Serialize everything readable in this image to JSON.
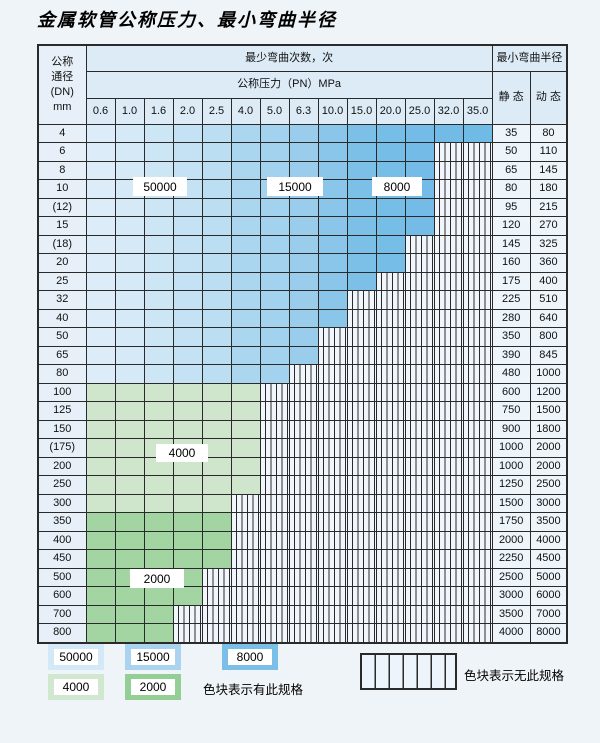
{
  "page": {
    "title": "金属软管公称压力、最小弯曲半径"
  },
  "table": {
    "header": {
      "dn_lines": [
        "公称",
        "通径",
        "(DN)",
        "mm"
      ],
      "bend_cycles_title": "最少弯曲次数，次",
      "pn_title": "公称压力（PN）MPa",
      "pn_values": [
        "0.6",
        "1.0",
        "1.6",
        "2.0",
        "2.5",
        "4.0",
        "5.0",
        "6.3",
        "10.0",
        "15.0",
        "20.0",
        "25.0",
        "32.0",
        "35.0"
      ],
      "radius_title": "最小弯曲半径",
      "static_label": "静 态",
      "dynamic_label": "动 态"
    },
    "rows": [
      {
        "dn": "4",
        "static": "35",
        "dynamic": "80",
        "pn_max_idx": 13,
        "zone": "blue"
      },
      {
        "dn": "6",
        "static": "50",
        "dynamic": "110",
        "pn_max_idx": 11,
        "zone": "blue"
      },
      {
        "dn": "8",
        "static": "65",
        "dynamic": "145",
        "pn_max_idx": 11,
        "zone": "blue"
      },
      {
        "dn": "10",
        "static": "80",
        "dynamic": "180",
        "pn_max_idx": 11,
        "zone": "blue"
      },
      {
        "dn": "(12)",
        "static": "95",
        "dynamic": "215",
        "pn_max_idx": 11,
        "zone": "blue"
      },
      {
        "dn": "15",
        "static": "120",
        "dynamic": "270",
        "pn_max_idx": 11,
        "zone": "blue"
      },
      {
        "dn": "(18)",
        "static": "145",
        "dynamic": "325",
        "pn_max_idx": 10,
        "zone": "blue"
      },
      {
        "dn": "20",
        "static": "160",
        "dynamic": "360",
        "pn_max_idx": 10,
        "zone": "blue"
      },
      {
        "dn": "25",
        "static": "175",
        "dynamic": "400",
        "pn_max_idx": 9,
        "zone": "blue"
      },
      {
        "dn": "32",
        "static": "225",
        "dynamic": "510",
        "pn_max_idx": 8,
        "zone": "blue"
      },
      {
        "dn": "40",
        "static": "280",
        "dynamic": "640",
        "pn_max_idx": 8,
        "zone": "blue"
      },
      {
        "dn": "50",
        "static": "350",
        "dynamic": "800",
        "pn_max_idx": 7,
        "zone": "blue"
      },
      {
        "dn": "65",
        "static": "390",
        "dynamic": "845",
        "pn_max_idx": 7,
        "zone": "blue"
      },
      {
        "dn": "80",
        "static": "480",
        "dynamic": "1000",
        "pn_max_idx": 6,
        "zone": "blue"
      },
      {
        "dn": "100",
        "static": "600",
        "dynamic": "1200",
        "pn_max_idx": 5,
        "zone": "green-light"
      },
      {
        "dn": "125",
        "static": "750",
        "dynamic": "1500",
        "pn_max_idx": 5,
        "zone": "green-light"
      },
      {
        "dn": "150",
        "static": "900",
        "dynamic": "1800",
        "pn_max_idx": 5,
        "zone": "green-light"
      },
      {
        "dn": "(175)",
        "static": "1000",
        "dynamic": "2000",
        "pn_max_idx": 5,
        "zone": "green-light"
      },
      {
        "dn": "200",
        "static": "1000",
        "dynamic": "2000",
        "pn_max_idx": 5,
        "zone": "green-light"
      },
      {
        "dn": "250",
        "static": "1250",
        "dynamic": "2500",
        "pn_max_idx": 5,
        "zone": "green-light"
      },
      {
        "dn": "300",
        "static": "1500",
        "dynamic": "3000",
        "pn_max_idx": 4,
        "zone": "green-light"
      },
      {
        "dn": "350",
        "static": "1750",
        "dynamic": "3500",
        "pn_max_idx": 4,
        "zone": "green-dark"
      },
      {
        "dn": "400",
        "static": "2000",
        "dynamic": "4000",
        "pn_max_idx": 4,
        "zone": "green-dark"
      },
      {
        "dn": "450",
        "static": "2250",
        "dynamic": "4500",
        "pn_max_idx": 4,
        "zone": "green-dark"
      },
      {
        "dn": "500",
        "static": "2500",
        "dynamic": "5000",
        "pn_max_idx": 3,
        "zone": "green-dark"
      },
      {
        "dn": "600",
        "static": "3000",
        "dynamic": "6000",
        "pn_max_idx": 3,
        "zone": "green-dark"
      },
      {
        "dn": "700",
        "static": "3500",
        "dynamic": "7000",
        "pn_max_idx": 2,
        "zone": "green-dark"
      },
      {
        "dn": "800",
        "static": "4000",
        "dynamic": "8000",
        "pn_max_idx": 2,
        "zone": "green-dark"
      }
    ]
  },
  "overlay_labels": [
    {
      "text": "50000"
    },
    {
      "text": "15000"
    },
    {
      "text": "8000"
    },
    {
      "text": "4000"
    },
    {
      "text": "2000"
    }
  ],
  "legend": {
    "items": [
      {
        "label": "50000",
        "color": "#d3e9f8"
      },
      {
        "label": "15000",
        "color": "#a9d3ef"
      },
      {
        "label": "8000",
        "color": "#79bfe8"
      },
      {
        "label": "4000",
        "color": "#d2e7cf"
      },
      {
        "label": "2000",
        "color": "#93cf94"
      }
    ],
    "has_spec_text": "色块表示有此规格",
    "no_spec_text": "色块表示无此规格"
  },
  "colors": {
    "blue_columns": [
      "#dcedf9",
      "#d5e9f7",
      "#cde6f6",
      "#c5e2f4",
      "#bcdef3",
      "#abd6f0",
      "#a3d2ee",
      "#9acdec",
      "#8ac6ea",
      "#7cc0e8",
      "#76bde7",
      "#74bce7",
      "#72bbe6",
      "#70bae6"
    ],
    "green_light": "#cfe6cd",
    "green_dark": "#a3d5a3",
    "header_bg": "#dcebf6",
    "hatch_bg": "#f1f6fc",
    "border": "#2a2a2a"
  }
}
